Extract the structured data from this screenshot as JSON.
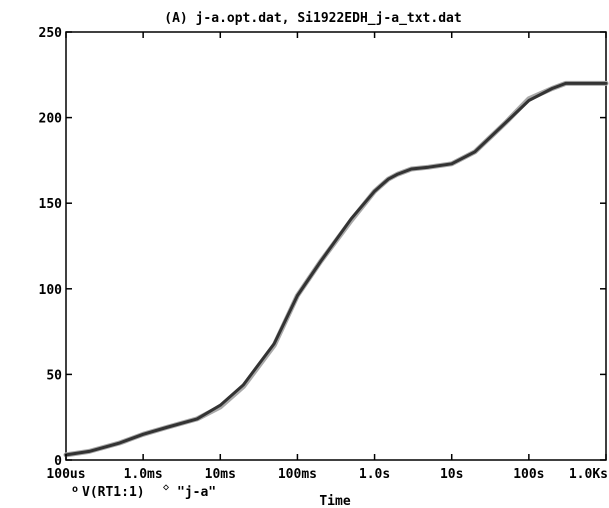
{
  "chart_data": {
    "type": "line",
    "title": "(A) j-a.opt.dat, Si1922EDH_j-a_txt.dat",
    "xlabel": "Time",
    "ylabel": "",
    "x_scale": "log",
    "xlim": [
      0.0001,
      1000
    ],
    "ylim": [
      0,
      250
    ],
    "grid": false,
    "x_ticks": [
      {
        "value": 0.0001,
        "label": "100us"
      },
      {
        "value": 0.001,
        "label": "1.0ms"
      },
      {
        "value": 0.01,
        "label": "10ms"
      },
      {
        "value": 0.1,
        "label": "100ms"
      },
      {
        "value": 1,
        "label": "1.0s"
      },
      {
        "value": 10,
        "label": "10s"
      },
      {
        "value": 100,
        "label": "100s"
      },
      {
        "value": 1000,
        "label": "1.0Ks"
      }
    ],
    "y_ticks": [
      {
        "value": 0,
        "label": "0"
      },
      {
        "value": 50,
        "label": "50"
      },
      {
        "value": 100,
        "label": "100"
      },
      {
        "value": 150,
        "label": "150"
      },
      {
        "value": 200,
        "label": "200"
      },
      {
        "value": 250,
        "label": "250"
      }
    ],
    "legend": [
      {
        "marker": "o",
        "text": "V(RT1:1)"
      },
      {
        "marker": "◇",
        "text": "\"j-a\""
      }
    ],
    "colors": {
      "line_dark": "#333333",
      "line_light": "#a9a9a9"
    },
    "series": [
      {
        "style": "dark",
        "x": [
          0.0001,
          0.0002,
          0.0005,
          0.001,
          0.002,
          0.005,
          0.01,
          0.02,
          0.05,
          0.1,
          0.2,
          0.5,
          1,
          1.5,
          2,
          3,
          5,
          10,
          20,
          50,
          100,
          200,
          300,
          1000
        ],
        "y": [
          3,
          5,
          10,
          15,
          19,
          24,
          32,
          44,
          68,
          96,
          116,
          141,
          157,
          164,
          167,
          170,
          171,
          173,
          180,
          197,
          210,
          217,
          220,
          220
        ]
      },
      {
        "style": "light",
        "x": [
          0.0001,
          0.0002,
          0.0005,
          0.001,
          0.002,
          0.005,
          0.01,
          0.02,
          0.05,
          0.1,
          0.2,
          0.5,
          1,
          1.5,
          2,
          3,
          5,
          10,
          20,
          50,
          100,
          200,
          300,
          1000
        ],
        "y": [
          3,
          5,
          10,
          15,
          19,
          24,
          31,
          43,
          67,
          96,
          116,
          140,
          157,
          164,
          167,
          170,
          171,
          173,
          180,
          197,
          211,
          217,
          220,
          220
        ]
      }
    ]
  }
}
